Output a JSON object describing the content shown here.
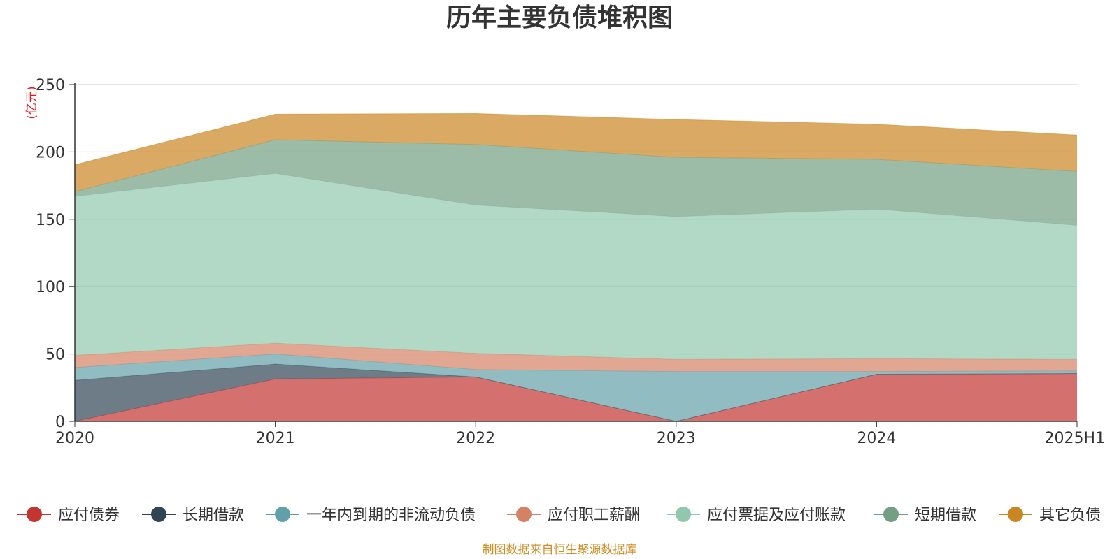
{
  "chart_data": {
    "type": "area",
    "stacked": true,
    "title": "历年主要负债堆积图",
    "y_unit_label": "(亿元)",
    "x": [
      "2020",
      "2021",
      "2022",
      "2023",
      "2024",
      "2025H1"
    ],
    "ylim": [
      0,
      250
    ],
    "yticks": [
      0,
      50,
      100,
      150,
      200,
      250
    ],
    "grid": true,
    "legend_position": "bottom",
    "series": [
      {
        "name": "应付债券",
        "color": "#c23531",
        "values": [
          0,
          31.5,
          33,
          0,
          35,
          35.5
        ]
      },
      {
        "name": "长期借款",
        "color": "#2f4554",
        "values": [
          30.5,
          11,
          0,
          0,
          0,
          0
        ]
      },
      {
        "name": "一年内到期的非流动负债",
        "color": "#61a0a8",
        "values": [
          9.5,
          7.5,
          5.5,
          37,
          2,
          2
        ]
      },
      {
        "name": "应付职工薪酬",
        "color": "#d48265",
        "values": [
          9,
          8,
          12,
          9,
          9.5,
          8.5
        ]
      },
      {
        "name": "应付票据及应付账款",
        "color": "#91c7ae",
        "values": [
          118,
          126,
          110,
          106,
          111,
          99.5
        ]
      },
      {
        "name": "短期借款",
        "color": "#749f83",
        "values": [
          3.5,
          25,
          45,
          44,
          37,
          40
        ]
      },
      {
        "name": "其它负债",
        "color": "#ca8622",
        "values": [
          20,
          19,
          23,
          28,
          26,
          27
        ]
      }
    ]
  },
  "footer": "制图数据来自恒生聚源数据库"
}
